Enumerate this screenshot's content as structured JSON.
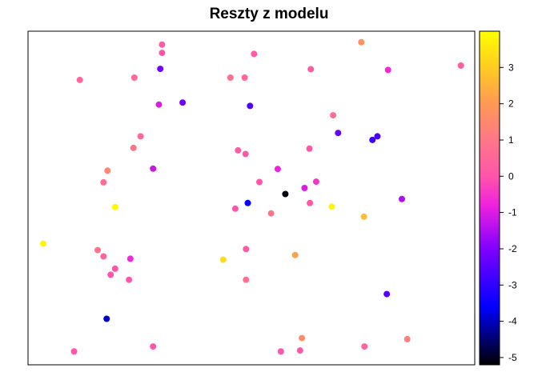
{
  "chart_data": {
    "type": "scatter",
    "title": "Reszty z modelu",
    "xlabel": "",
    "ylabel": "",
    "x_axis_visible": false,
    "y_axis_visible": false,
    "x_range": [
      0,
      1
    ],
    "y_range": [
      0,
      1
    ],
    "color_scale": {
      "name": "plasma",
      "range": [
        -5.2,
        4.0
      ],
      "ticks": [
        -5,
        -4,
        -3,
        -2,
        -1,
        0,
        1,
        2,
        3
      ],
      "tick_labels": [
        "-5",
        "-4",
        "-3",
        "-2",
        "-1",
        "0",
        "1",
        "2",
        "3"
      ],
      "stops": [
        {
          "value": -5.2,
          "color": "#000000"
        },
        {
          "value": -3.6,
          "color": "#0000ff"
        },
        {
          "value": -2.0,
          "color": "#8000ff"
        },
        {
          "value": -0.8,
          "color": "#ee22dd"
        },
        {
          "value": 0.0,
          "color": "#ff55aa"
        },
        {
          "value": 1.0,
          "color": "#ff7788"
        },
        {
          "value": 2.0,
          "color": "#ff9955"
        },
        {
          "value": 3.0,
          "color": "#ffcc22"
        },
        {
          "value": 4.0,
          "color": "#ffff00"
        }
      ]
    },
    "points": [
      {
        "x": 0.3,
        "y": 0.96,
        "value": 0.2
      },
      {
        "x": 0.3,
        "y": 0.935,
        "value": 0.0
      },
      {
        "x": 0.506,
        "y": 0.932,
        "value": 0.2
      },
      {
        "x": 0.746,
        "y": 0.967,
        "value": 1.8
      },
      {
        "x": 0.969,
        "y": 0.897,
        "value": 0.3
      },
      {
        "x": 0.116,
        "y": 0.854,
        "value": 0.5
      },
      {
        "x": 0.238,
        "y": 0.861,
        "value": 0.6
      },
      {
        "x": 0.296,
        "y": 0.887,
        "value": -2.2
      },
      {
        "x": 0.453,
        "y": 0.861,
        "value": 0.8
      },
      {
        "x": 0.485,
        "y": 0.861,
        "value": 0.5
      },
      {
        "x": 0.633,
        "y": 0.886,
        "value": 0.2
      },
      {
        "x": 0.806,
        "y": 0.884,
        "value": -0.7
      },
      {
        "x": 0.293,
        "y": 0.78,
        "value": -1.0
      },
      {
        "x": 0.346,
        "y": 0.786,
        "value": -2.1
      },
      {
        "x": 0.497,
        "y": 0.776,
        "value": -2.6
      },
      {
        "x": 0.683,
        "y": 0.748,
        "value": 0.7
      },
      {
        "x": 0.252,
        "y": 0.685,
        "value": 0.5
      },
      {
        "x": 0.236,
        "y": 0.65,
        "value": 0.9
      },
      {
        "x": 0.47,
        "y": 0.643,
        "value": 0.3
      },
      {
        "x": 0.487,
        "y": 0.632,
        "value": 0.1
      },
      {
        "x": 0.63,
        "y": 0.648,
        "value": 0.1
      },
      {
        "x": 0.694,
        "y": 0.695,
        "value": -2.3
      },
      {
        "x": 0.771,
        "y": 0.674,
        "value": -2.8
      },
      {
        "x": 0.782,
        "y": 0.685,
        "value": -2.7
      },
      {
        "x": 0.178,
        "y": 0.582,
        "value": 1.4
      },
      {
        "x": 0.28,
        "y": 0.588,
        "value": -1.2
      },
      {
        "x": 0.169,
        "y": 0.547,
        "value": 0.7
      },
      {
        "x": 0.559,
        "y": 0.587,
        "value": -0.8
      },
      {
        "x": 0.518,
        "y": 0.548,
        "value": 0.0
      },
      {
        "x": 0.645,
        "y": 0.549,
        "value": -0.5
      },
      {
        "x": 0.619,
        "y": 0.53,
        "value": -1.0
      },
      {
        "x": 0.576,
        "y": 0.512,
        "value": -5.1
      },
      {
        "x": 0.837,
        "y": 0.497,
        "value": -1.5
      },
      {
        "x": 0.195,
        "y": 0.473,
        "value": 3.9
      },
      {
        "x": 0.464,
        "y": 0.468,
        "value": 0.1
      },
      {
        "x": 0.492,
        "y": 0.485,
        "value": -3.5
      },
      {
        "x": 0.544,
        "y": 0.454,
        "value": 0.9
      },
      {
        "x": 0.631,
        "y": 0.485,
        "value": 0.1
      },
      {
        "x": 0.68,
        "y": 0.474,
        "value": 3.8
      },
      {
        "x": 0.752,
        "y": 0.444,
        "value": 2.7
      },
      {
        "x": 0.034,
        "y": 0.363,
        "value": 3.8
      },
      {
        "x": 0.156,
        "y": 0.344,
        "value": 0.8
      },
      {
        "x": 0.169,
        "y": 0.325,
        "value": 0.5
      },
      {
        "x": 0.229,
        "y": 0.318,
        "value": -0.7
      },
      {
        "x": 0.195,
        "y": 0.288,
        "value": 0.0
      },
      {
        "x": 0.185,
        "y": 0.27,
        "value": 0.0
      },
      {
        "x": 0.226,
        "y": 0.255,
        "value": 0.0
      },
      {
        "x": 0.437,
        "y": 0.315,
        "value": 3.3
      },
      {
        "x": 0.488,
        "y": 0.347,
        "value": 0.2
      },
      {
        "x": 0.598,
        "y": 0.329,
        "value": 2.2
      },
      {
        "x": 0.488,
        "y": 0.255,
        "value": 0.8
      },
      {
        "x": 0.803,
        "y": 0.212,
        "value": -2.5
      },
      {
        "x": 0.176,
        "y": 0.138,
        "value": -3.9
      },
      {
        "x": 0.613,
        "y": 0.08,
        "value": 1.6
      },
      {
        "x": 0.849,
        "y": 0.077,
        "value": 1.2
      },
      {
        "x": 0.103,
        "y": 0.04,
        "value": 0.0
      },
      {
        "x": 0.28,
        "y": 0.055,
        "value": 0.0
      },
      {
        "x": 0.566,
        "y": 0.04,
        "value": 0.0
      },
      {
        "x": 0.609,
        "y": 0.043,
        "value": 0.1
      },
      {
        "x": 0.753,
        "y": 0.055,
        "value": 0.4
      }
    ]
  }
}
